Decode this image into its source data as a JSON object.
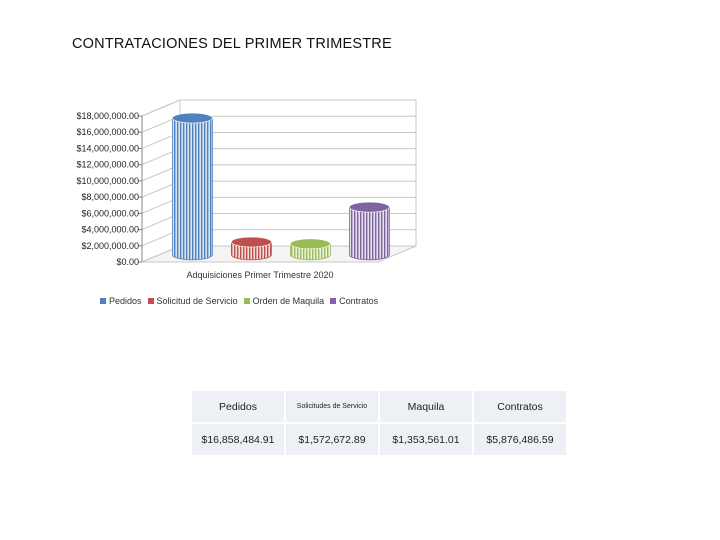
{
  "page": {
    "title": "CONTRATACIONES DEL PRIMER TRIMESTRE"
  },
  "chart_data": {
    "type": "bar",
    "style": "3d-cylinder",
    "xlabel": "Adquisiciones Primer Trimestre 2020",
    "ylabel": "",
    "ylim": [
      0,
      18000000
    ],
    "yticks": [
      "$0.00",
      "$2,000,000.00",
      "$4,000,000.00",
      "$6,000,000.00",
      "$8,000,000.00",
      "$10,000,000.00",
      "$12,000,000.00",
      "$14,000,000.00",
      "$16,000,000.00",
      "$18,000,000.00"
    ],
    "grid": true,
    "legend_position": "bottom",
    "series": [
      {
        "name": "Pedidos",
        "value": 16858484.91,
        "color": "#4f81bd"
      },
      {
        "name": "Solicitud de Servicio",
        "value": 1572672.89,
        "color": "#c0504d"
      },
      {
        "name": "Orden de Maquila",
        "value": 1353561.01,
        "color": "#9bbb59"
      },
      {
        "name": "Contratos",
        "value": 5876486.59,
        "color": "#8064a2"
      }
    ]
  },
  "table": {
    "headers": [
      "Pedidos",
      "Solicitudes de Servicio",
      "Maquila",
      "Contratos"
    ],
    "values": [
      "$16,858,484.91",
      "$1,572,672.89",
      "$1,353,561.01",
      "$5,876,486.59"
    ]
  }
}
